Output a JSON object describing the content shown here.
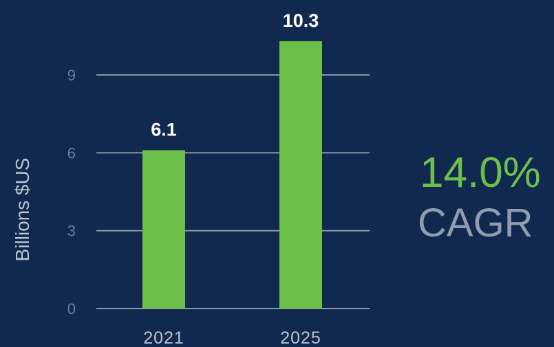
{
  "chart_data": {
    "type": "bar",
    "categories": [
      "2021",
      "2025"
    ],
    "values": [
      6.1,
      10.3
    ],
    "data_labels": [
      "6.1",
      "10.3"
    ],
    "ylabel": "Billions $US",
    "xlabel": "",
    "ylim": [
      0,
      10.3
    ],
    "yticks": [
      0,
      3,
      6,
      9
    ],
    "grid": true,
    "colors": {
      "bar": "#6cc04a",
      "background": "#11294f",
      "grid": "#8b96a8",
      "tick_label": "#6f7f9b"
    }
  },
  "callout": {
    "value": "14.0%",
    "label": "CAGR",
    "value_color": "#6cc04a",
    "label_color": "#8f9db1"
  }
}
